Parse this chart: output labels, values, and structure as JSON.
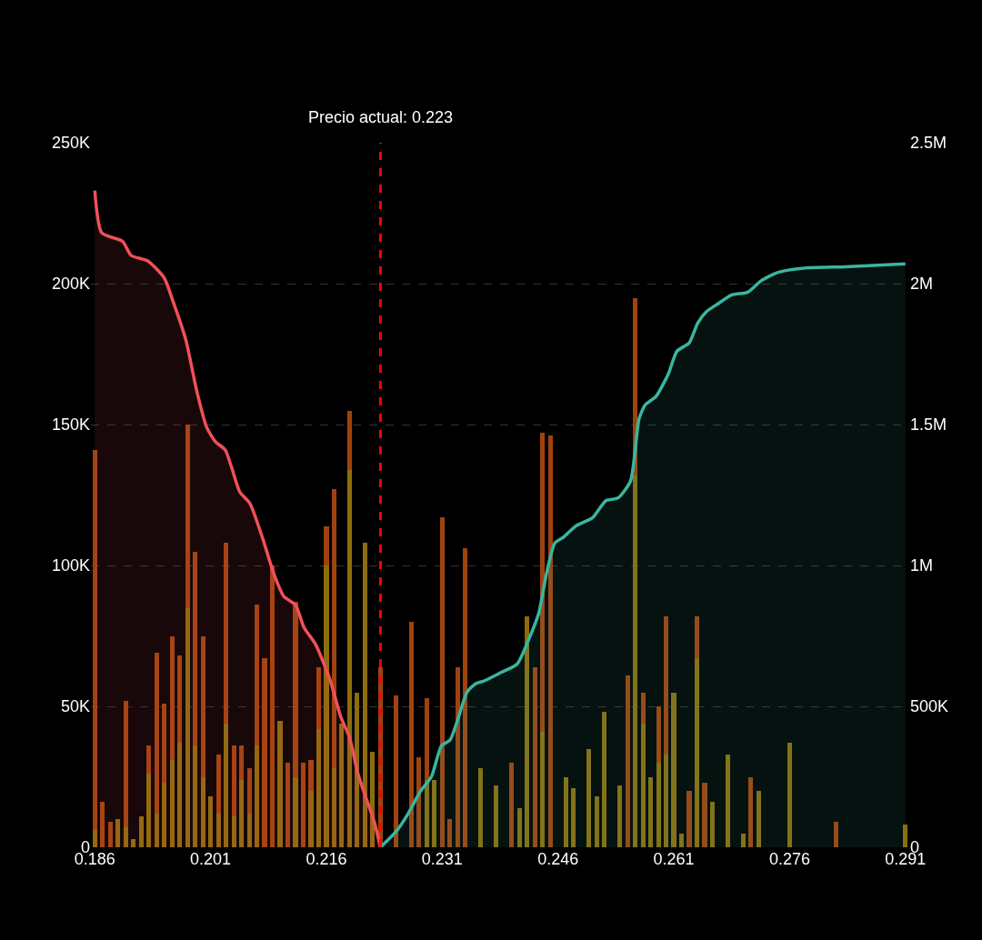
{
  "chart_data": {
    "type": "bar",
    "stacked": true,
    "grid": "y",
    "x": [
      0.186,
      0.187,
      0.188,
      0.189,
      0.19,
      0.191,
      0.192,
      0.193,
      0.194,
      0.195,
      0.196,
      0.197,
      0.198,
      0.199,
      0.2,
      0.201,
      0.202,
      0.203,
      0.204,
      0.205,
      0.206,
      0.207,
      0.208,
      0.209,
      0.21,
      0.211,
      0.212,
      0.213,
      0.214,
      0.215,
      0.216,
      0.217,
      0.218,
      0.219,
      0.22,
      0.221,
      0.222,
      0.223,
      0.224,
      0.225,
      0.226,
      0.227,
      0.228,
      0.229,
      0.23,
      0.231,
      0.232,
      0.233,
      0.234,
      0.235,
      0.236,
      0.237,
      0.238,
      0.239,
      0.24,
      0.241,
      0.242,
      0.243,
      0.244,
      0.245,
      0.246,
      0.247,
      0.248,
      0.249,
      0.25,
      0.251,
      0.252,
      0.253,
      0.254,
      0.255,
      0.256,
      0.257,
      0.258,
      0.259,
      0.26,
      0.261,
      0.262,
      0.263,
      0.264,
      0.265,
      0.266,
      0.267,
      0.268,
      0.269,
      0.27,
      0.271,
      0.272,
      0.273,
      0.274,
      0.275,
      0.276,
      0.277,
      0.278,
      0.279,
      0.28,
      0.281,
      0.282,
      0.283,
      0.284,
      0.285,
      0.286,
      0.287,
      0.288,
      0.289,
      0.29,
      0.291
    ],
    "xlim": [
      0.1855,
      0.2915
    ],
    "xticks": [
      0.186,
      0.201,
      0.216,
      0.231,
      0.246,
      0.261,
      0.276,
      0.291
    ],
    "ylim": [
      0,
      250000
    ],
    "yticks": [
      0,
      {
        "value": 50000,
        "label": "50K"
      },
      {
        "value": 100000,
        "label": "100K"
      },
      {
        "value": 150000,
        "label": "150K"
      },
      {
        "value": 200000,
        "label": "200K"
      },
      {
        "value": 250000,
        "label": "250K"
      }
    ],
    "y2lim": [
      0,
      2500000
    ],
    "y2ticks": [
      0,
      {
        "value": 500000,
        "label": "500K"
      },
      {
        "value": 1000000,
        "label": "1M"
      },
      {
        "value": 1500000,
        "label": "1.5M"
      },
      {
        "value": 2000000,
        "label": "2M"
      },
      {
        "value": 2500000,
        "label": "2.5M"
      }
    ],
    "series": [
      {
        "color": "#8c6c0c",
        "values": [
          6000,
          0,
          0,
          10000,
          7000,
          3000,
          11000,
          26000,
          12000,
          23000,
          31000,
          37000,
          85000,
          36000,
          25000,
          18000,
          12000,
          44000,
          11000,
          24000,
          12000,
          36000,
          0,
          0,
          45000,
          0,
          25000,
          0,
          20000,
          42000,
          100000,
          28000,
          44000,
          134000,
          55000,
          108000,
          34000,
          0,
          0,
          0,
          0,
          0,
          0,
          24000,
          24000,
          0,
          0,
          0,
          0,
          0,
          28000,
          0,
          22000,
          0,
          0,
          14000,
          82000,
          0,
          41000,
          0,
          0,
          25000,
          21000,
          0,
          35000,
          18000,
          48000,
          0,
          22000,
          0,
          132000,
          44000,
          25000,
          30000,
          33000,
          55000,
          5000,
          0,
          67000,
          0,
          16000,
          0,
          33000,
          0,
          5000,
          0,
          20000,
          0,
          0,
          0,
          37000,
          0,
          0,
          0,
          0,
          0,
          0,
          0,
          0,
          0,
          0,
          0,
          0,
          0,
          0,
          8000
        ]
      },
      {
        "color": "#a0420e",
        "values": [
          135000,
          16000,
          9000,
          0,
          45000,
          0,
          0,
          10000,
          57000,
          28000,
          44000,
          31000,
          65000,
          69000,
          50000,
          0,
          21000,
          64000,
          25000,
          12000,
          16000,
          50000,
          67000,
          100000,
          0,
          30000,
          62000,
          30000,
          11000,
          22000,
          14000,
          99000,
          0,
          21000,
          0,
          0,
          0,
          64000,
          0,
          54000,
          0,
          80000,
          32000,
          29000,
          0,
          117000,
          10000,
          64000,
          106000,
          0,
          0,
          0,
          0,
          0,
          30000,
          0,
          0,
          64000,
          106000,
          146000,
          0,
          0,
          0,
          0,
          0,
          0,
          0,
          0,
          0,
          61000,
          63000,
          11000,
          0,
          20000,
          49000,
          0,
          0,
          20000,
          15000,
          23000,
          0,
          0,
          0,
          0,
          0,
          25000,
          0,
          0,
          0,
          0,
          0,
          0,
          0,
          0,
          0,
          0,
          9000,
          0,
          0,
          0,
          0,
          0,
          0,
          0,
          0,
          0
        ]
      },
      {
        "type": "area",
        "axis": "y2",
        "color": "#f0505a",
        "x": [
          0.186,
          0.1869,
          0.1896,
          0.1907,
          0.1929,
          0.195,
          0.1961,
          0.1978,
          0.1992,
          0.2005,
          0.2016,
          0.2029,
          0.2037,
          0.2048,
          0.2061,
          0.2077,
          0.2092,
          0.2105,
          0.212,
          0.2131,
          0.2146,
          0.2164,
          0.2179,
          0.219,
          0.2201,
          0.2212,
          0.2222,
          0.223
        ],
        "values": [
          2330000,
          2180000,
          2150000,
          2100000,
          2080000,
          2020000,
          1940000,
          1800000,
          1620000,
          1490000,
          1440000,
          1410000,
          1350000,
          1260000,
          1220000,
          1100000,
          970000,
          890000,
          860000,
          780000,
          720000,
          600000,
          460000,
          390000,
          260000,
          170000,
          90000,
          0
        ]
      },
      {
        "type": "area",
        "axis": "y2",
        "color": "#3ab5a0",
        "x": [
          0.223,
          0.225,
          0.2266,
          0.2282,
          0.2296,
          0.2309,
          0.232,
          0.2331,
          0.2342,
          0.2353,
          0.2364,
          0.2386,
          0.2407,
          0.2424,
          0.2435,
          0.2445,
          0.2456,
          0.2467,
          0.2483,
          0.2505,
          0.2522,
          0.2538,
          0.2554,
          0.2565,
          0.2573,
          0.2587,
          0.2603,
          0.2614,
          0.263,
          0.2641,
          0.2652,
          0.2668,
          0.2685,
          0.2706,
          0.2723,
          0.2745,
          0.2778,
          0.2832,
          0.291
        ],
        "values": [
          0,
          55000,
          120000,
          200000,
          250000,
          360000,
          380000,
          460000,
          550000,
          580000,
          590000,
          620000,
          650000,
          750000,
          830000,
          970000,
          1080000,
          1100000,
          1140000,
          1170000,
          1230000,
          1240000,
          1300000,
          1520000,
          1570000,
          1600000,
          1680000,
          1760000,
          1790000,
          1860000,
          1900000,
          1930000,
          1960000,
          1970000,
          2010000,
          2040000,
          2055000,
          2060000,
          2070000
        ]
      }
    ],
    "ref_lines": [
      {
        "axis": "x",
        "value": 0.223,
        "label": "Precio actual: 0.223",
        "color": "#ff0000",
        "line_style": "dashed"
      }
    ]
  }
}
